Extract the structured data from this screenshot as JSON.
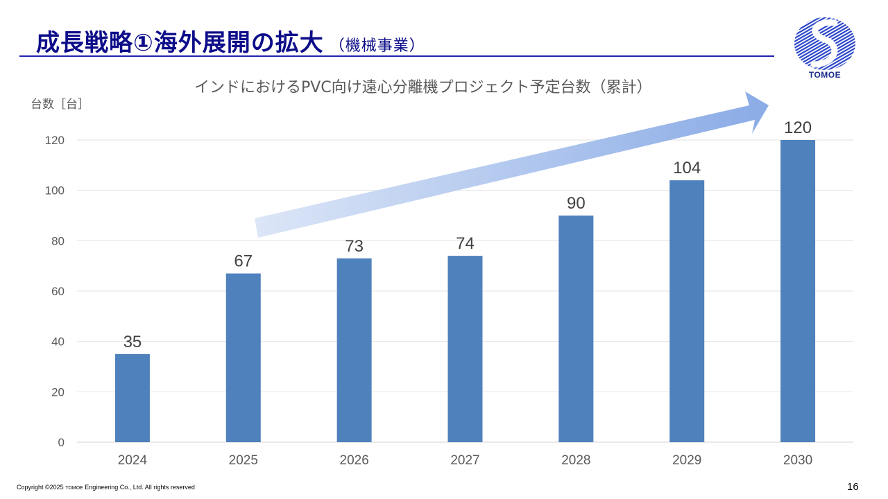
{
  "header": {
    "title": "成長戦略①海外展開の拡大",
    "subtitle": "（機械事業）"
  },
  "logo": {
    "text": "TOMOE",
    "icon": "tomoe-logo-icon"
  },
  "chart_data": {
    "type": "bar",
    "title": "インドにおけるPVC向け遠心分離機プロジェクト予定台数（累計）",
    "ylabel": "台数［台］",
    "xlabel": "",
    "categories": [
      "2024",
      "2025",
      "2026",
      "2027",
      "2028",
      "2029",
      "2030"
    ],
    "values": [
      35,
      67,
      73,
      74,
      90,
      104,
      120
    ],
    "ylim": [
      0,
      120
    ],
    "yticks": [
      0,
      20,
      40,
      60,
      80,
      100,
      120
    ],
    "grid": true,
    "bar_color": "#4f81bd",
    "annotation": "growth-trend-arrow"
  },
  "footer": {
    "copyright_prefix": "Copyright ©2025",
    "copyright_brand": "TOMOE",
    "copyright_suffix": "Engineering Co., Ltd. All rights reserved",
    "page_number": "16"
  }
}
